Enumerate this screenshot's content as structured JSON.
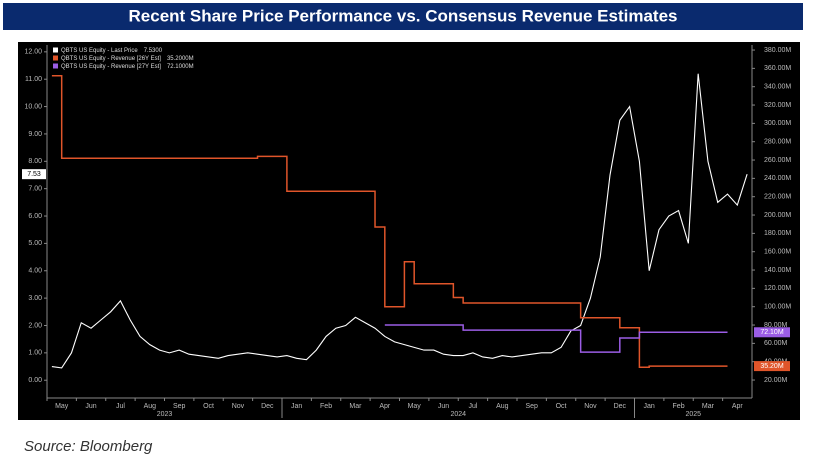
{
  "chart_data": {
    "type": "line",
    "title": "Recent Share Price Performance vs. Consensus Revenue Estimates",
    "source": "Source: Bloomberg",
    "x": [
      "2023-05",
      "2023-05",
      "2023-05",
      "2023-06",
      "2023-06",
      "2023-06",
      "2023-07",
      "2023-07",
      "2023-07",
      "2023-08",
      "2023-08",
      "2023-08",
      "2023-09",
      "2023-09",
      "2023-09",
      "2023-10",
      "2023-10",
      "2023-10",
      "2023-11",
      "2023-11",
      "2023-11",
      "2023-12",
      "2023-12",
      "2023-12",
      "2024-01",
      "2024-01",
      "2024-01",
      "2024-02",
      "2024-02",
      "2024-02",
      "2024-03",
      "2024-03",
      "2024-03",
      "2024-04",
      "2024-04",
      "2024-04",
      "2024-05",
      "2024-05",
      "2024-05",
      "2024-06",
      "2024-06",
      "2024-06",
      "2024-07",
      "2024-07",
      "2024-07",
      "2024-08",
      "2024-08",
      "2024-08",
      "2024-09",
      "2024-09",
      "2024-09",
      "2024-10",
      "2024-10",
      "2024-10",
      "2024-11",
      "2024-11",
      "2024-11",
      "2024-12",
      "2024-12",
      "2024-12",
      "2025-01",
      "2025-01",
      "2025-01",
      "2025-02",
      "2025-02",
      "2025-02",
      "2025-03",
      "2025-03",
      "2025-03",
      "2025-04",
      "2025-04",
      "2025-04"
    ],
    "xticks": [
      {
        "value": "2023-05",
        "label": "May"
      },
      {
        "value": "2023-06",
        "label": "Jun"
      },
      {
        "value": "2023-07",
        "label": "Jul"
      },
      {
        "value": "2023-08",
        "label": "Aug"
      },
      {
        "value": "2023-09",
        "label": "Sep"
      },
      {
        "value": "2023-10",
        "label": "Oct"
      },
      {
        "value": "2023-11",
        "label": "Nov"
      },
      {
        "value": "2023-12",
        "label": "Dec"
      },
      {
        "value": "2024-01",
        "label": "Jan"
      },
      {
        "value": "2024-02",
        "label": "Feb"
      },
      {
        "value": "2024-03",
        "label": "Mar"
      },
      {
        "value": "2024-04",
        "label": "Apr"
      },
      {
        "value": "2024-05",
        "label": "May"
      },
      {
        "value": "2024-06",
        "label": "Jun"
      },
      {
        "value": "2024-07",
        "label": "Jul"
      },
      {
        "value": "2024-08",
        "label": "Aug"
      },
      {
        "value": "2024-09",
        "label": "Sep"
      },
      {
        "value": "2024-10",
        "label": "Oct"
      },
      {
        "value": "2024-11",
        "label": "Nov"
      },
      {
        "value": "2024-12",
        "label": "Dec"
      },
      {
        "value": "2025-01",
        "label": "Jan"
      },
      {
        "value": "2025-02",
        "label": "Feb"
      },
      {
        "value": "2025-03",
        "label": "Mar"
      },
      {
        "value": "2025-04",
        "label": "Apr"
      }
    ],
    "xyears": [
      "2023",
      "2024",
      "2025"
    ],
    "ylim": [
      -0.65,
      12.25
    ],
    "yticks": [
      {
        "value": 0,
        "label": "0.00"
      },
      {
        "value": 1,
        "label": "1.00"
      },
      {
        "value": 2,
        "label": "2.00"
      },
      {
        "value": 3,
        "label": "3.00"
      },
      {
        "value": 4,
        "label": "4.00"
      },
      {
        "value": 5,
        "label": "5.00"
      },
      {
        "value": 6,
        "label": "6.00"
      },
      {
        "value": 7,
        "label": "7.00"
      },
      {
        "value": 8,
        "label": "8.00"
      },
      {
        "value": 9,
        "label": "9.00"
      },
      {
        "value": 10,
        "label": "10.00"
      },
      {
        "value": 11,
        "label": "11.00"
      },
      {
        "value": 12,
        "label": "12.00"
      }
    ],
    "y2lim": [
      0.4,
      385.5
    ],
    "y2ticks": [
      {
        "value": 20,
        "label": "20.00M"
      },
      {
        "value": 40,
        "label": "40.00M"
      },
      {
        "value": 60,
        "label": "60.00M"
      },
      {
        "value": 80,
        "label": "80.00M"
      },
      {
        "value": 100,
        "label": "100.00M"
      },
      {
        "value": 120,
        "label": "120.00M"
      },
      {
        "value": 140,
        "label": "140.00M"
      },
      {
        "value": 160,
        "label": "160.00M"
      },
      {
        "value": 180,
        "label": "180.00M"
      },
      {
        "value": 200,
        "label": "200.00M"
      },
      {
        "value": 220,
        "label": "220.00M"
      },
      {
        "value": 240,
        "label": "240.00M"
      },
      {
        "value": 260,
        "label": "260.00M"
      },
      {
        "value": 280,
        "label": "280.00M"
      },
      {
        "value": 300,
        "label": "300.00M"
      },
      {
        "value": 320,
        "label": "320.00M"
      },
      {
        "value": 340,
        "label": "340.00M"
      },
      {
        "value": 360,
        "label": "360.00M"
      },
      {
        "value": 380,
        "label": "380.00M"
      }
    ],
    "grid": false,
    "series": [
      {
        "name": "QBTS US Equity - Last Price",
        "legend_value": "7.5300",
        "last_label": "7.53",
        "color": "#ffffff",
        "step": false,
        "values": [
          0.5,
          0.45,
          1.0,
          2.1,
          1.9,
          2.2,
          2.5,
          2.9,
          2.2,
          1.6,
          1.3,
          1.1,
          1.0,
          1.1,
          0.95,
          0.9,
          0.85,
          0.8,
          0.9,
          0.95,
          1.0,
          0.95,
          0.9,
          0.85,
          0.9,
          0.8,
          0.75,
          1.1,
          1.6,
          1.9,
          2.0,
          2.3,
          2.1,
          1.9,
          1.6,
          1.4,
          1.3,
          1.2,
          1.1,
          1.1,
          0.95,
          0.9,
          0.9,
          1.0,
          0.85,
          0.8,
          0.9,
          0.85,
          0.9,
          0.95,
          1.0,
          1.0,
          1.2,
          1.8,
          2.0,
          3.0,
          4.5,
          7.5,
          9.5,
          10.0,
          8.0,
          4.0,
          5.5,
          6.0,
          6.2,
          5.0,
          11.2,
          8.0,
          6.5,
          6.8,
          6.4,
          7.53
        ]
      },
      {
        "name": "QBTS US Equity - Revenue [26Y Est]",
        "legend_value": "35.2000M",
        "last_label": "35.20M",
        "color": "#e0552a",
        "step": true,
        "axis": "y2",
        "values": [
          352,
          262,
          262,
          262,
          262,
          262,
          262,
          262,
          262,
          262,
          262,
          262,
          262,
          262,
          262,
          262,
          262,
          262,
          262,
          262,
          262,
          264,
          264,
          264,
          226,
          226,
          226,
          226,
          226,
          226,
          226,
          226,
          226,
          187,
          100,
          100,
          149,
          125,
          125,
          125,
          125,
          110,
          104,
          104,
          104,
          104,
          104,
          104,
          104,
          104,
          104,
          104,
          104,
          104,
          88,
          88,
          88,
          88,
          77,
          77,
          34,
          35.2,
          35.2,
          35.2,
          35.2,
          35.2,
          35.2,
          35.2,
          35.2,
          35.2,
          null,
          null
        ]
      },
      {
        "name": "QBTS US Equity - Revenue [27Y Est]",
        "legend_value": "72.1000M",
        "last_label": "72.10M",
        "color": "#9b5de5",
        "step": true,
        "axis": "y2",
        "values": [
          null,
          null,
          null,
          null,
          null,
          null,
          null,
          null,
          null,
          null,
          null,
          null,
          null,
          null,
          null,
          null,
          null,
          null,
          null,
          null,
          null,
          null,
          null,
          null,
          null,
          null,
          null,
          null,
          null,
          null,
          null,
          null,
          null,
          null,
          80,
          80,
          80,
          80,
          80,
          80,
          80,
          80,
          74.5,
          74.5,
          74.5,
          74.5,
          74.5,
          74.5,
          74.5,
          74.5,
          74.5,
          74.5,
          74.5,
          74.5,
          50.5,
          50.5,
          50.5,
          50.5,
          65.8,
          65.8,
          72.1,
          72.1,
          72.1,
          72.1,
          72.1,
          72.1,
          72.1,
          72.1,
          72.1,
          72.1,
          null,
          null
        ]
      }
    ]
  }
}
